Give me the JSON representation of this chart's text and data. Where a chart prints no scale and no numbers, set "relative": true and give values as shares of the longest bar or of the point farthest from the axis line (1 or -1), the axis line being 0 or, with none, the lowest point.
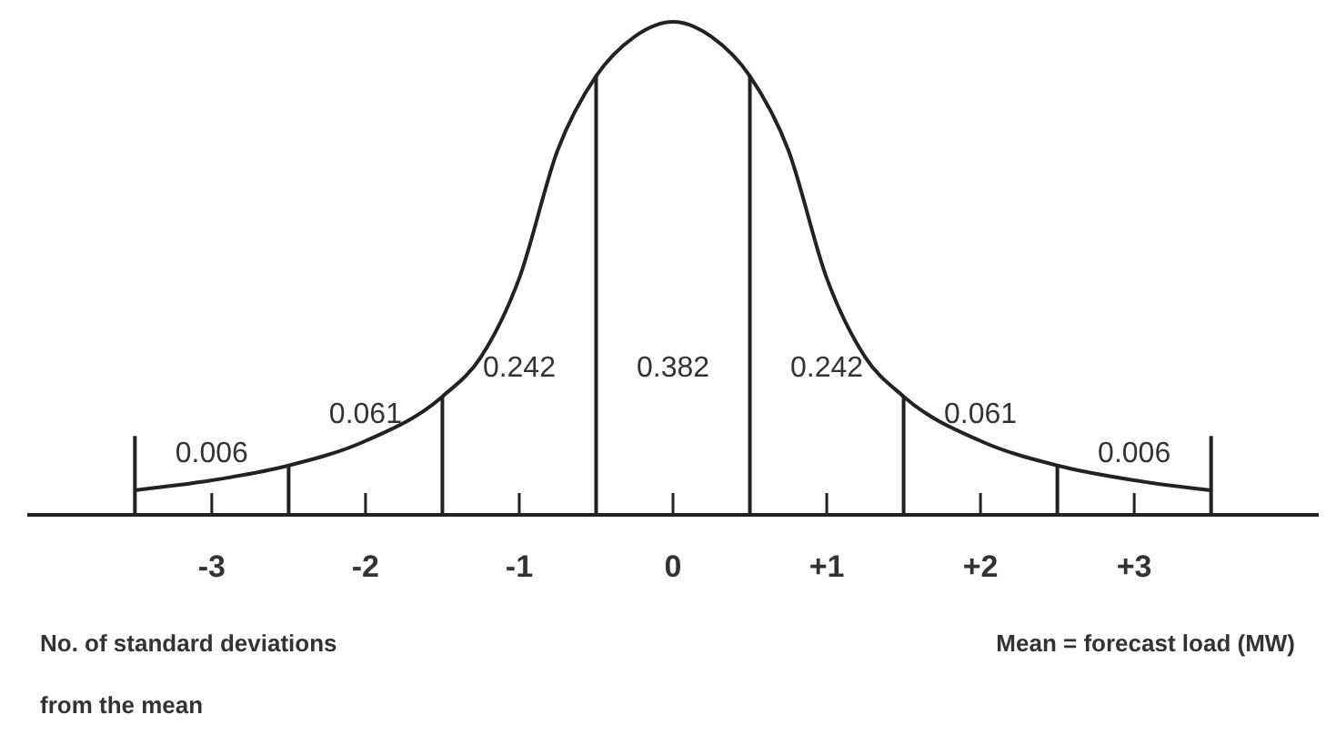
{
  "chart_data": {
    "type": "line",
    "relative": true,
    "color": "#222222",
    "x": [
      -3.5,
      -3,
      -2.5,
      -2,
      -1.5,
      -1.25,
      -1,
      -0.75,
      -0.5,
      -0.25,
      0,
      0.25,
      0.5,
      0.75,
      1,
      1.25,
      1.5,
      2,
      2.5,
      3,
      3.5
    ],
    "values": [
      0.05,
      0.07,
      0.1,
      0.15,
      0.24,
      0.32,
      0.48,
      0.74,
      0.89,
      0.97,
      1,
      0.97,
      0.89,
      0.74,
      0.48,
      0.32,
      0.24,
      0.15,
      0.1,
      0.07,
      0.05
    ],
    "xlim": [
      -4.2,
      4.2
    ],
    "xticks": [
      {
        "value": -3,
        "label": "-3"
      },
      {
        "value": -2,
        "label": "-2"
      },
      {
        "value": -1,
        "label": "-1"
      },
      0,
      {
        "value": 1,
        "label": "+1"
      },
      {
        "value": 2,
        "label": "+2"
      },
      {
        "value": 3,
        "label": "+3"
      }
    ],
    "ref_lines": [
      {
        "axis": "x",
        "value": -3.5
      },
      {
        "axis": "x",
        "value": -2.5
      },
      {
        "axis": "x",
        "value": -1.5
      },
      {
        "axis": "x",
        "value": -0.5
      },
      {
        "axis": "x",
        "value": 0.5
      },
      {
        "axis": "x",
        "value": 1.5
      },
      {
        "axis": "x",
        "value": 2.5
      },
      {
        "axis": "x",
        "value": 3.5
      }
    ],
    "annotations": [
      "0.006",
      "0.061",
      "0.242",
      "0.382",
      "0.242",
      "0.061",
      "0.006",
      "No. of standard deviations from the mean",
      "Mean = forecast load (MW)"
    ]
  }
}
